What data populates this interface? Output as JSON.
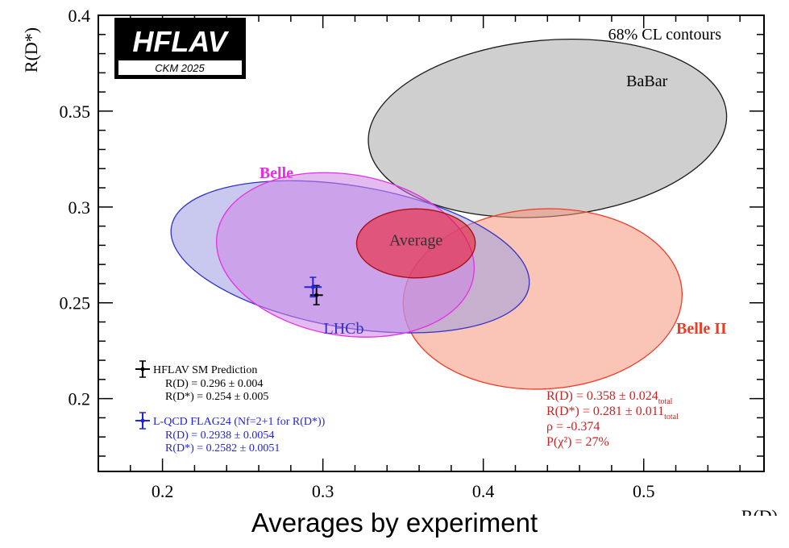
{
  "caption": "Averages by experiment",
  "chart_data": {
    "type": "contour",
    "title": "68% CL contours",
    "xlabel": "R(D)",
    "ylabel": "R(D*)",
    "xlim": [
      0.16,
      0.575
    ],
    "ylim": [
      0.162,
      0.4
    ],
    "xticks": [
      0.2,
      0.3,
      0.4,
      0.5
    ],
    "xtick_labels": [
      "0.2",
      "0.3",
      "0.4",
      "0.5"
    ],
    "yticks": [
      0.2,
      0.25,
      0.3,
      0.35,
      0.4
    ],
    "ytick_labels": [
      "0.2",
      "0.25",
      "0.3",
      "0.35",
      "0.4"
    ],
    "logo": {
      "name": "HFLAV",
      "subtitle": "CKM 2025"
    },
    "series": [
      {
        "name": "BaBar",
        "type": "ellipse",
        "cx": 0.44,
        "cy": 0.341,
        "rx": 0.112,
        "ry": 0.046,
        "angle_deg": -5.0,
        "fill": "#a8a8a8",
        "stroke": "#1a1a1a",
        "label_color": "#000000",
        "label_x": 0.502,
        "label_y": 0.363
      },
      {
        "name": "Belle II",
        "type": "ellipse",
        "cx": 0.437,
        "cy": 0.252,
        "rx": 0.087,
        "ry": 0.047,
        "angle_deg": -3.0,
        "fill": "#f6967a",
        "stroke": "#ee3b24",
        "label_color": "#ee3b24",
        "label_x": 0.536,
        "label_y": 0.234
      },
      {
        "name": "LHCb",
        "type": "ellipse",
        "cx": 0.317,
        "cy": 0.274,
        "rx": 0.113,
        "ry": 0.037,
        "angle_deg": 9.5,
        "fill": "#9c9ce2",
        "stroke": "#3232c8",
        "label_color": "#3232c8",
        "label_x": 0.313,
        "label_y": 0.234
      },
      {
        "name": "Belle",
        "type": "ellipse",
        "cx": 0.314,
        "cy": 0.275,
        "rx": 0.081,
        "ry": 0.042,
        "angle_deg": 9.5,
        "fill": "#ce84e6",
        "stroke": "#e62ee6",
        "label_color": "#e62ee6",
        "label_x": 0.271,
        "label_y": 0.315
      },
      {
        "name": "Average",
        "type": "ellipse",
        "cx": 0.358,
        "cy": 0.281,
        "rx": 0.037,
        "ry": 0.018,
        "angle_deg": 0,
        "fill": "#ef1520",
        "stroke": "#a80a10",
        "label_color": "#333333",
        "label_x": 0.358,
        "label_y": 0.28
      }
    ],
    "predictions": [
      {
        "name": "HFLAV SM Prediction",
        "color": "#000000",
        "x": 0.296,
        "x_err": 0.004,
        "y": 0.254,
        "y_err": 0.005,
        "lines": [
          "R(D) = 0.296 ± 0.004",
          "R(D*) = 0.254 ± 0.005"
        ]
      },
      {
        "name": "L-QCD FLAG24 (Nf=2+1 for R(D*))",
        "color": "#2222e0",
        "x": 0.2938,
        "x_err": 0.0054,
        "y": 0.2582,
        "y_err": 0.0051,
        "lines": [
          "R(D) = 0.2938 ± 0.0054",
          "R(D*) = 0.2582 ± 0.0051"
        ]
      }
    ],
    "average_result": {
      "color": "#cc2222",
      "lines": [
        {
          "main": "R(D) = 0.358 ± 0.024",
          "sub": "total"
        },
        {
          "main": "R(D*) = 0.281 ± 0.011",
          "sub": "total"
        },
        {
          "main": "ρ = -0.374",
          "sub": ""
        },
        {
          "main": "P(χ²) = 27%",
          "sub": ""
        }
      ]
    }
  }
}
